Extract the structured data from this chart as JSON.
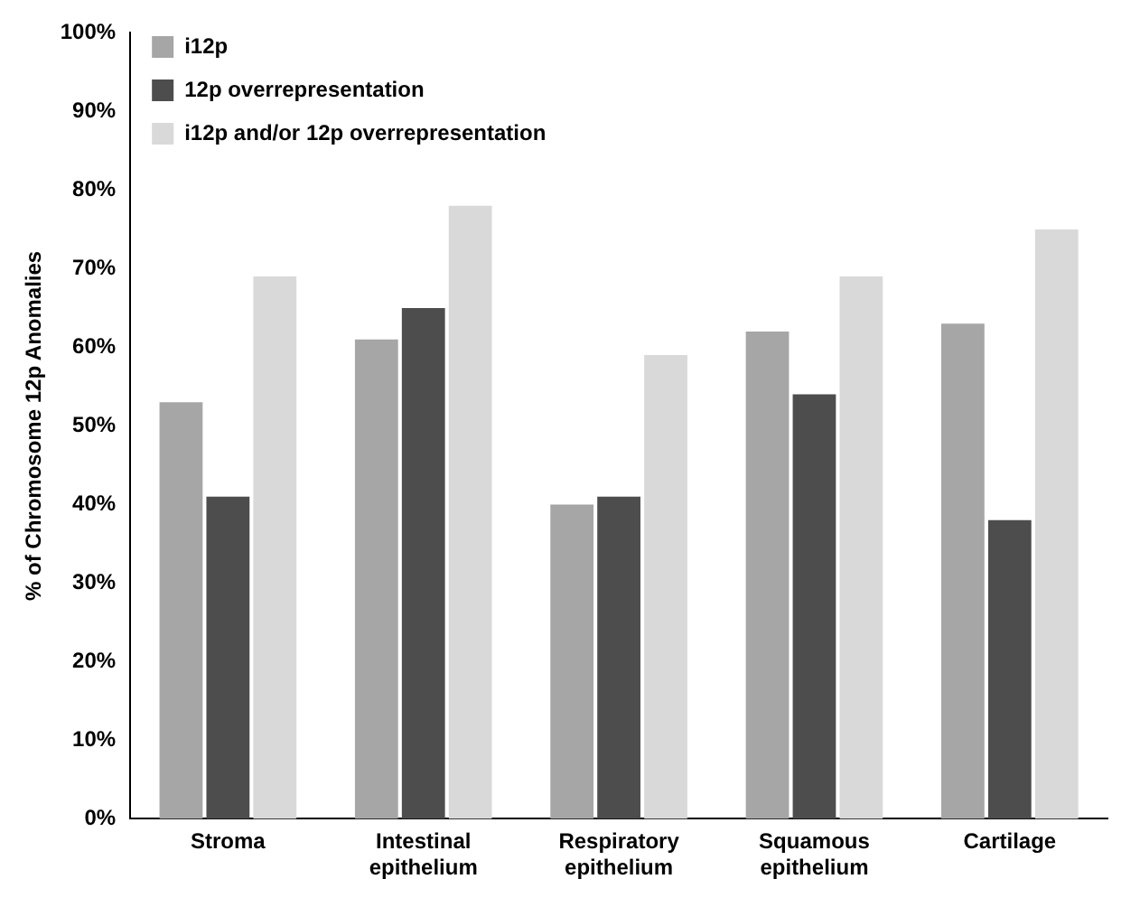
{
  "chart_data": {
    "type": "bar",
    "ylabel": "% of Chromosome 12p Anomalies",
    "categories": [
      "Stroma",
      "Intestinal epithelium",
      "Respiratory epithelium",
      "Squamous epithelium",
      "Cartilage"
    ],
    "series": [
      {
        "name": "i12p",
        "color": "#a6a6a6",
        "values": [
          53,
          61,
          40,
          62,
          63
        ]
      },
      {
        "name": "12p overrepresentation",
        "color": "#4d4d4d",
        "values": [
          41,
          65,
          41,
          54,
          38
        ]
      },
      {
        "name": "i12p and/or 12p overrepresentation",
        "color": "#d9d9d9",
        "values": [
          69,
          78,
          59,
          69,
          75
        ]
      }
    ],
    "ylim": [
      0,
      100
    ],
    "yticks": [
      {
        "value": 0,
        "label": "0%"
      },
      {
        "value": 10,
        "label": "10%"
      },
      {
        "value": 20,
        "label": "20%"
      },
      {
        "value": 30,
        "label": "30%"
      },
      {
        "value": 40,
        "label": "40%"
      },
      {
        "value": 50,
        "label": "50%"
      },
      {
        "value": 60,
        "label": "60%"
      },
      {
        "value": 70,
        "label": "70%"
      },
      {
        "value": 80,
        "label": "80%"
      },
      {
        "value": 90,
        "label": "90%"
      },
      {
        "value": 100,
        "label": "100%"
      }
    ],
    "grid": false,
    "legend": "top left"
  }
}
